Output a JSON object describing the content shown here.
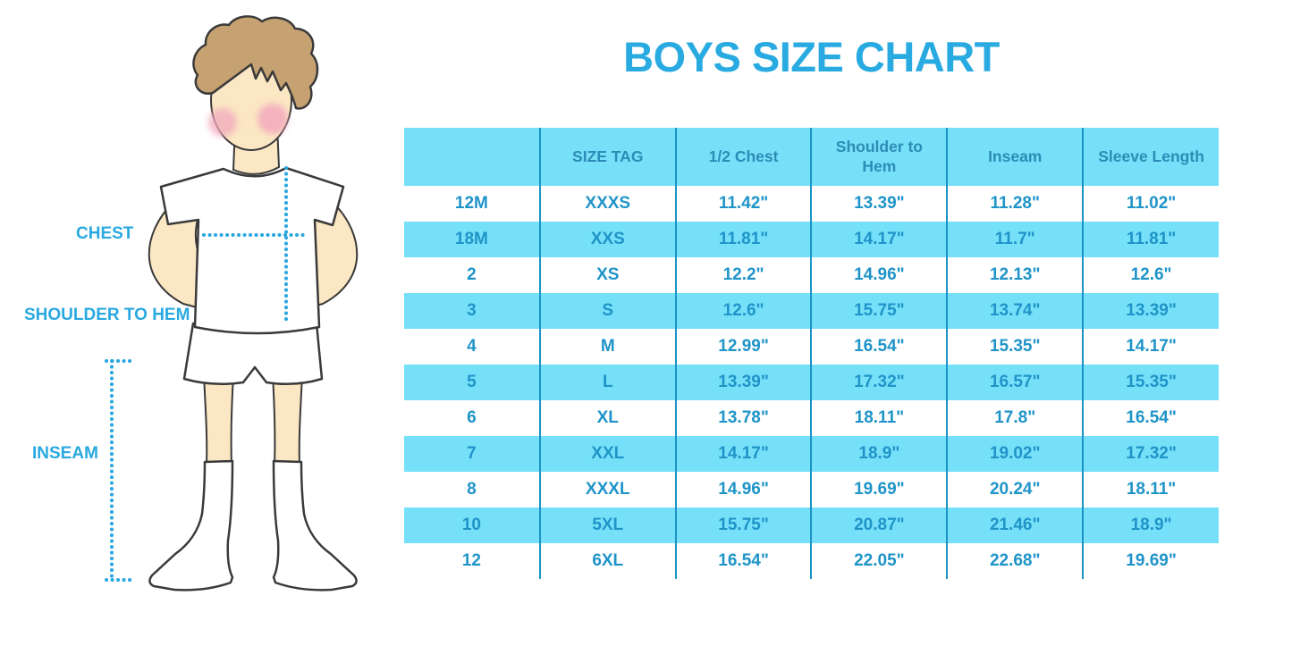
{
  "title": "BOYS SIZE CHART",
  "figure": {
    "labels": {
      "chest": "CHEST",
      "shoulder_to_hem": "SHOULDER TO HEM",
      "inseam": "INSEAM"
    }
  },
  "colors": {
    "accent_blue": "#29ABE2",
    "table_row_blue": "#76E0F9",
    "table_divider_blue": "#1C93C7",
    "table_text_blue": "#1F94C8",
    "dotted_line_blue": "#29A7E1",
    "skin": "#FBE7C3",
    "hair": "#C6A171",
    "cheek_pink": "#F2A9BE"
  },
  "chart_data": {
    "type": "table",
    "title": "BOYS SIZE CHART",
    "columns": [
      "",
      "SIZE TAG",
      "1/2 Chest",
      "Shoulder to Hem",
      "Inseam",
      "Sleeve Length"
    ],
    "rows": [
      [
        "12M",
        "XXXS",
        "11.42\"",
        "13.39\"",
        "11.28\"",
        "11.02\""
      ],
      [
        "18M",
        "XXS",
        "11.81\"",
        "14.17\"",
        "11.7\"",
        "11.81\""
      ],
      [
        "2",
        "XS",
        "12.2\"",
        "14.96\"",
        "12.13\"",
        "12.6\""
      ],
      [
        "3",
        "S",
        "12.6\"",
        "15.75\"",
        "13.74\"",
        "13.39\""
      ],
      [
        "4",
        "M",
        "12.99\"",
        "16.54\"",
        "15.35\"",
        "14.17\""
      ],
      [
        "5",
        "L",
        "13.39\"",
        "17.32\"",
        "16.57\"",
        "15.35\""
      ],
      [
        "6",
        "XL",
        "13.78\"",
        "18.11\"",
        "17.8\"",
        "16.54\""
      ],
      [
        "7",
        "XXL",
        "14.17\"",
        "18.9\"",
        "19.02\"",
        "17.32\""
      ],
      [
        "8",
        "XXXL",
        "14.96\"",
        "19.69\"",
        "20.24\"",
        "18.11\""
      ],
      [
        "10",
        "5XL",
        "15.75\"",
        "20.87\"",
        "21.46\"",
        "18.9\""
      ],
      [
        "12",
        "6XL",
        "16.54\"",
        "22.05\"",
        "22.68\"",
        "19.69\""
      ]
    ],
    "header_bg": "#76E0F9",
    "row_stripe_colors": [
      "#FFFFFF",
      "#76E0F9"
    ],
    "units": "inches"
  }
}
